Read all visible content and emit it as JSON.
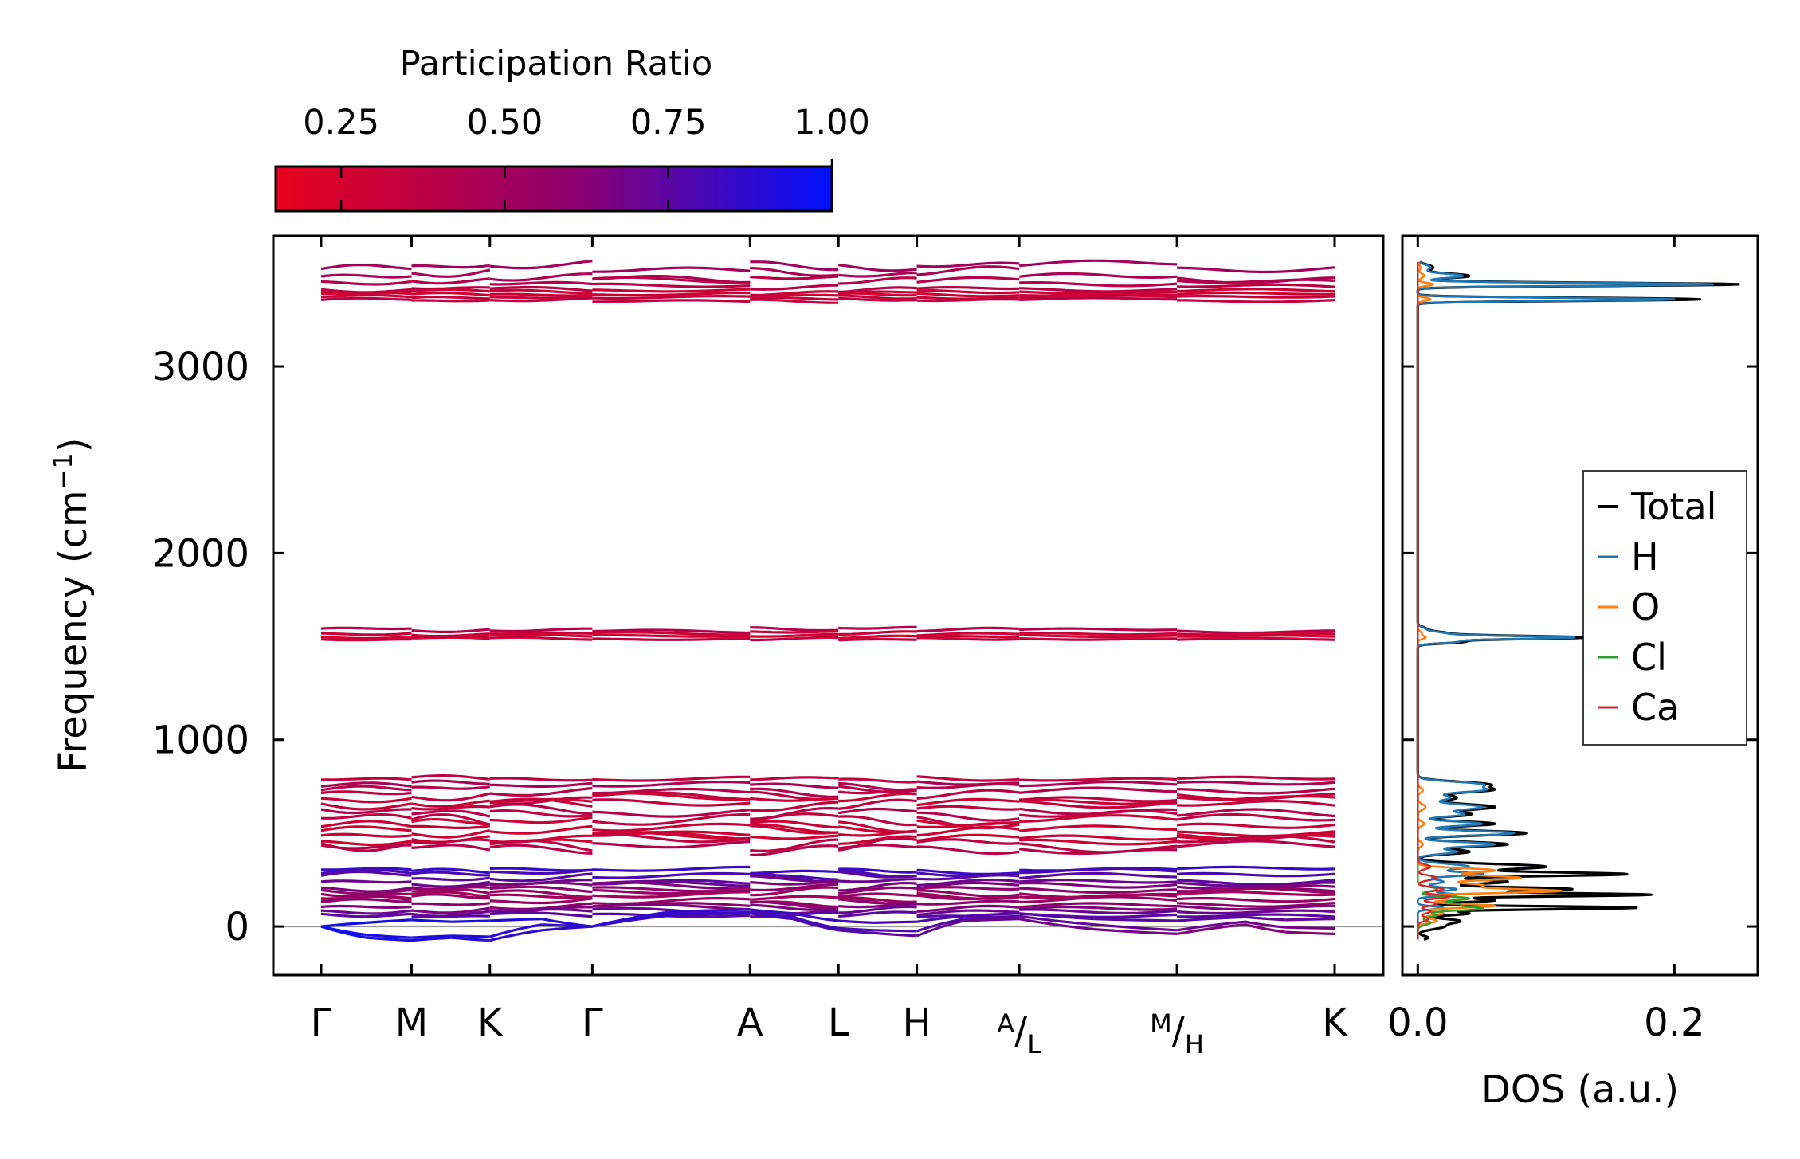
{
  "colors": {
    "pr_low": "#e8001c",
    "pr_mid": "#8a0070",
    "pr_high": "#0010ff",
    "dos_total": "#000000",
    "dos_H": "#1f77b4",
    "dos_O": "#ff7f0e",
    "dos_Cl": "#2ca02c",
    "dos_Ca": "#d62728"
  },
  "colorbar": {
    "label": "Participation Ratio",
    "min": 0.15,
    "max": 1.0,
    "ticks": [
      {
        "value": 0.25,
        "label": "0.25"
      },
      {
        "value": 0.5,
        "label": "0.50"
      },
      {
        "value": 0.75,
        "label": "0.75"
      },
      {
        "value": 1.0,
        "label": "1.00"
      }
    ]
  },
  "chart_data": [
    {
      "type": "line",
      "name": "phonon-band-structure",
      "title": "",
      "xlabel": "",
      "ylabel": "Frequency (cm⁻¹)",
      "ylabel_parts": {
        "main": "Frequency (cm",
        "sup": "−1",
        "close": ")"
      },
      "ylim": [
        -260,
        3700
      ],
      "yticks": [
        {
          "value": 0,
          "label": "0"
        },
        {
          "value": 1000,
          "label": "1000"
        },
        {
          "value": 2000,
          "label": "2000"
        },
        {
          "value": 3000,
          "label": "3000"
        }
      ],
      "zero_line": true,
      "xlim": [
        0,
        10.09
      ],
      "kpoints": [
        {
          "x": 0.0,
          "label": "Γ"
        },
        {
          "x": 0.9,
          "label": "M"
        },
        {
          "x": 1.68,
          "label": "K"
        },
        {
          "x": 2.7,
          "label": "Γ"
        },
        {
          "x": 4.27,
          "label": "A"
        },
        {
          "x": 5.15,
          "label": "L"
        },
        {
          "x": 5.93,
          "label": "H"
        },
        {
          "x": 6.95,
          "label": "A|L",
          "top": "A",
          "bottom": "L"
        },
        {
          "x": 8.52,
          "label": "M|H",
          "top": "M",
          "bottom": "H"
        },
        {
          "x": 10.09,
          "label": "K"
        }
      ],
      "segment_breaks": [
        0.9,
        1.68,
        2.7,
        6.95,
        8.52
      ],
      "bands": [
        {
          "f": 3535,
          "a": 25,
          "pr": 0.5
        },
        {
          "f": 3490,
          "a": 30,
          "pr": 0.45
        },
        {
          "f": 3460,
          "a": 20,
          "pr": 0.4
        },
        {
          "f": 3420,
          "a": 15,
          "pr": 0.38
        },
        {
          "f": 3400,
          "a": 12,
          "pr": 0.3
        },
        {
          "f": 3385,
          "a": 10,
          "pr": 0.28
        },
        {
          "f": 3370,
          "a": 10,
          "pr": 0.32
        },
        {
          "f": 3355,
          "a": 10,
          "pr": 0.35
        },
        {
          "f": 1590,
          "a": 12,
          "pr": 0.4
        },
        {
          "f": 1570,
          "a": 10,
          "pr": 0.3
        },
        {
          "f": 1555,
          "a": 8,
          "pr": 0.28
        },
        {
          "f": 1540,
          "a": 8,
          "pr": 0.32
        },
        {
          "f": 790,
          "a": 15,
          "pr": 0.35
        },
        {
          "f": 760,
          "a": 20,
          "pr": 0.45
        },
        {
          "f": 730,
          "a": 25,
          "pr": 0.4
        },
        {
          "f": 700,
          "a": 30,
          "pr": 0.35
        },
        {
          "f": 680,
          "a": 25,
          "pr": 0.3
        },
        {
          "f": 650,
          "a": 30,
          "pr": 0.33
        },
        {
          "f": 610,
          "a": 35,
          "pr": 0.4
        },
        {
          "f": 580,
          "a": 40,
          "pr": 0.35
        },
        {
          "f": 550,
          "a": 30,
          "pr": 0.3
        },
        {
          "f": 520,
          "a": 25,
          "pr": 0.28
        },
        {
          "f": 495,
          "a": 30,
          "pr": 0.3
        },
        {
          "f": 470,
          "a": 25,
          "pr": 0.28
        },
        {
          "f": 445,
          "a": 40,
          "pr": 0.35
        },
        {
          "f": 420,
          "a": 30,
          "pr": 0.4
        },
        {
          "f": 300,
          "a": 15,
          "pr": 0.85
        },
        {
          "f": 280,
          "a": 20,
          "pr": 0.8
        },
        {
          "f": 260,
          "a": 25,
          "pr": 0.75
        },
        {
          "f": 240,
          "a": 20,
          "pr": 0.7
        },
        {
          "f": 220,
          "a": 25,
          "pr": 0.65
        },
        {
          "f": 200,
          "a": 20,
          "pr": 0.6
        },
        {
          "f": 180,
          "a": 25,
          "pr": 0.55
        },
        {
          "f": 160,
          "a": 20,
          "pr": 0.5
        },
        {
          "f": 140,
          "a": 25,
          "pr": 0.55
        },
        {
          "f": 120,
          "a": 20,
          "pr": 0.6
        },
        {
          "f": 100,
          "a": 20,
          "pr": 0.65
        },
        {
          "f": 80,
          "a": 20,
          "pr": 0.7
        },
        {
          "f": 60,
          "a": 15,
          "pr": 0.75
        }
      ],
      "acoustic_bands": [
        {
          "name": "acoustic-1",
          "pr_start": 0.95,
          "pr_end": 0.6,
          "points": [
            [
              0,
              0
            ],
            [
              0.45,
              -60
            ],
            [
              0.9,
              -75
            ],
            [
              1.3,
              -60
            ],
            [
              1.68,
              -75
            ],
            [
              2.2,
              -20
            ],
            [
              2.7,
              0
            ],
            [
              3.5,
              60
            ],
            [
              4.27,
              70
            ],
            [
              4.7,
              40
            ],
            [
              5.15,
              -20
            ],
            [
              5.5,
              -35
            ],
            [
              5.93,
              -50
            ],
            [
              6.4,
              30
            ],
            [
              6.95,
              40
            ],
            [
              7.7,
              -15
            ],
            [
              8.52,
              -40
            ],
            [
              9.2,
              10
            ],
            [
              9.6,
              -30
            ],
            [
              10.09,
              -40
            ]
          ]
        },
        {
          "name": "acoustic-2",
          "pr_start": 0.95,
          "pr_end": 0.65,
          "points": [
            [
              0,
              0
            ],
            [
              0.45,
              -45
            ],
            [
              0.9,
              -60
            ],
            [
              1.3,
              -50
            ],
            [
              1.68,
              -55
            ],
            [
              2.2,
              10
            ],
            [
              2.7,
              0
            ],
            [
              3.5,
              70
            ],
            [
              4.27,
              75
            ],
            [
              4.7,
              50
            ],
            [
              5.15,
              -10
            ],
            [
              5.5,
              -20
            ],
            [
              5.93,
              -25
            ],
            [
              6.4,
              40
            ],
            [
              6.95,
              55
            ],
            [
              7.7,
              10
            ],
            [
              8.52,
              -20
            ],
            [
              9.2,
              25
            ],
            [
              9.6,
              -5
            ],
            [
              10.09,
              -10
            ]
          ]
        },
        {
          "name": "acoustic-3",
          "pr_start": 0.95,
          "pr_end": 0.7,
          "points": [
            [
              0,
              0
            ],
            [
              0.45,
              20
            ],
            [
              0.9,
              35
            ],
            [
              1.3,
              25
            ],
            [
              1.68,
              30
            ],
            [
              2.2,
              40
            ],
            [
              2.7,
              0
            ],
            [
              3.5,
              80
            ],
            [
              4.27,
              90
            ],
            [
              4.7,
              70
            ],
            [
              5.15,
              30
            ],
            [
              5.5,
              20
            ],
            [
              5.93,
              25
            ],
            [
              6.4,
              55
            ],
            [
              6.95,
              70
            ],
            [
              7.7,
              40
            ],
            [
              8.52,
              30
            ],
            [
              9.2,
              50
            ],
            [
              9.6,
              35
            ],
            [
              10.09,
              40
            ]
          ]
        }
      ]
    },
    {
      "type": "line",
      "name": "phonon-dos",
      "xlabel": "DOS (a.u.)",
      "ylabel": "",
      "xlim": [
        -0.012,
        0.265
      ],
      "ylim": [
        -260,
        3700
      ],
      "xticks": [
        {
          "value": 0.0,
          "label": "0.0"
        },
        {
          "value": 0.2,
          "label": "0.2"
        }
      ],
      "legend_position": "center-right",
      "series": [
        {
          "name": "Total",
          "peaks": [
            [
              3530,
              0.012,
              15
            ],
            [
              3485,
              0.04,
              12
            ],
            [
              3440,
              0.25,
              8
            ],
            [
              3360,
              0.22,
              8
            ],
            [
              1595,
              0.006,
              10
            ],
            [
              1570,
              0.022,
              10
            ],
            [
              1548,
              0.13,
              8
            ],
            [
              1525,
              0.035,
              8
            ],
            [
              760,
              0.055,
              15
            ],
            [
              730,
              0.05,
              12
            ],
            [
              690,
              0.03,
              15
            ],
            [
              640,
              0.06,
              15
            ],
            [
              600,
              0.04,
              12
            ],
            [
              550,
              0.06,
              12
            ],
            [
              500,
              0.085,
              12
            ],
            [
              440,
              0.07,
              12
            ],
            [
              400,
              0.04,
              12
            ],
            [
              320,
              0.1,
              15
            ],
            [
              280,
              0.16,
              10
            ],
            [
              240,
              0.07,
              12
            ],
            [
              200,
              0.12,
              10
            ],
            [
              170,
              0.18,
              8
            ],
            [
              140,
              0.06,
              10
            ],
            [
              100,
              0.17,
              8
            ],
            [
              70,
              0.04,
              10
            ],
            [
              30,
              0.03,
              12
            ],
            [
              0,
              0.02,
              15
            ],
            [
              -60,
              0.008,
              10
            ]
          ]
        },
        {
          "name": "H",
          "peaks": [
            [
              3530,
              0.01,
              15
            ],
            [
              3485,
              0.035,
              12
            ],
            [
              3440,
              0.23,
              8
            ],
            [
              3360,
              0.2,
              8
            ],
            [
              1595,
              0.005,
              10
            ],
            [
              1570,
              0.02,
              10
            ],
            [
              1548,
              0.12,
              8
            ],
            [
              1525,
              0.03,
              8
            ],
            [
              760,
              0.05,
              15
            ],
            [
              730,
              0.045,
              12
            ],
            [
              690,
              0.025,
              15
            ],
            [
              640,
              0.05,
              15
            ],
            [
              600,
              0.035,
              12
            ],
            [
              550,
              0.05,
              12
            ],
            [
              500,
              0.075,
              12
            ],
            [
              440,
              0.06,
              12
            ],
            [
              400,
              0.03,
              12
            ],
            [
              320,
              0.04,
              15
            ],
            [
              280,
              0.05,
              10
            ],
            [
              240,
              0.02,
              12
            ],
            [
              200,
              0.03,
              10
            ],
            [
              170,
              0.03,
              8
            ],
            [
              100,
              0.02,
              8
            ]
          ]
        },
        {
          "name": "O",
          "peaks": [
            [
              3530,
              0.002,
              15
            ],
            [
              3485,
              0.005,
              12
            ],
            [
              3440,
              0.012,
              8
            ],
            [
              3360,
              0.01,
              8
            ],
            [
              1570,
              0.003,
              10
            ],
            [
              1548,
              0.006,
              8
            ],
            [
              730,
              0.004,
              12
            ],
            [
              640,
              0.006,
              15
            ],
            [
              550,
              0.005,
              12
            ],
            [
              440,
              0.004,
              12
            ],
            [
              300,
              0.06,
              12
            ],
            [
              260,
              0.08,
              12
            ],
            [
              220,
              0.05,
              12
            ],
            [
              190,
              0.11,
              10
            ],
            [
              150,
              0.04,
              10
            ],
            [
              110,
              0.06,
              10
            ],
            [
              70,
              0.02,
              10
            ],
            [
              30,
              0.015,
              12
            ]
          ]
        },
        {
          "name": "Cl",
          "peaks": [
            [
              200,
              0.015,
              12
            ],
            [
              150,
              0.04,
              10
            ],
            [
              120,
              0.03,
              10
            ],
            [
              95,
              0.05,
              10
            ],
            [
              60,
              0.015,
              10
            ],
            [
              20,
              0.01,
              12
            ]
          ]
        },
        {
          "name": "Ca",
          "peaks": [
            [
              320,
              0.01,
              12
            ],
            [
              260,
              0.015,
              12
            ],
            [
              200,
              0.02,
              10
            ],
            [
              160,
              0.025,
              10
            ],
            [
              120,
              0.015,
              10
            ],
            [
              80,
              0.01,
              10
            ],
            [
              40,
              0.008,
              12
            ]
          ]
        }
      ]
    }
  ]
}
